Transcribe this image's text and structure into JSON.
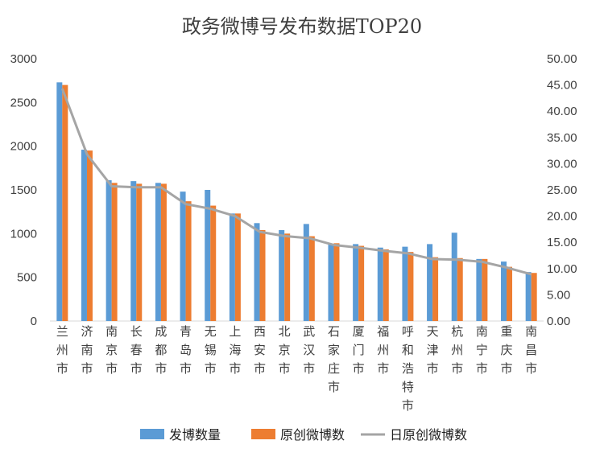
{
  "chart_data": {
    "type": "bar",
    "title": "政务微博号发布数据TOP20",
    "categories": [
      "兰州市",
      "济南市",
      "南京市",
      "长春市",
      "成都市",
      "青岛市",
      "无锡市",
      "上海市",
      "西安市",
      "北京市",
      "武汉市",
      "石家庄市",
      "厦门市",
      "福州市",
      "呼和浩特市",
      "天津市",
      "杭州市",
      "南宁市",
      "重庆市",
      "南昌市"
    ],
    "series": [
      {
        "name": "发博数量",
        "axis": "left",
        "type": "bar",
        "color": "#5B9BD5",
        "values": [
          2730,
          1960,
          1610,
          1600,
          1580,
          1480,
          1500,
          1230,
          1120,
          1040,
          1110,
          880,
          880,
          840,
          850,
          880,
          1010,
          710,
          680,
          560
        ]
      },
      {
        "name": "原创微博数",
        "axis": "left",
        "type": "bar",
        "color": "#ED7D31",
        "values": [
          2700,
          1950,
          1580,
          1570,
          1570,
          1370,
          1320,
          1230,
          1040,
          1000,
          970,
          890,
          860,
          820,
          790,
          730,
          720,
          710,
          620,
          550
        ]
      },
      {
        "name": "日原创微博数",
        "axis": "right",
        "type": "line",
        "color": "#A5A5A5",
        "values": [
          44.3,
          31.8,
          25.7,
          25.5,
          25.5,
          22.3,
          21.4,
          20.0,
          17.0,
          16.2,
          15.8,
          14.5,
          14.0,
          13.4,
          12.9,
          11.8,
          11.7,
          11.3,
          10.2,
          8.9
        ]
      }
    ],
    "y_left": {
      "min": 0,
      "max": 3000,
      "ticks": [
        "0",
        "500",
        "1000",
        "1500",
        "2000",
        "2500",
        "3000"
      ]
    },
    "y_right": {
      "min": 0,
      "max": 50,
      "ticks": [
        "0.00",
        "5.00",
        "10.00",
        "15.00",
        "20.00",
        "25.00",
        "30.00",
        "35.00",
        "40.00",
        "45.00",
        "50.00"
      ]
    },
    "grid": false,
    "legend": "bottom"
  }
}
